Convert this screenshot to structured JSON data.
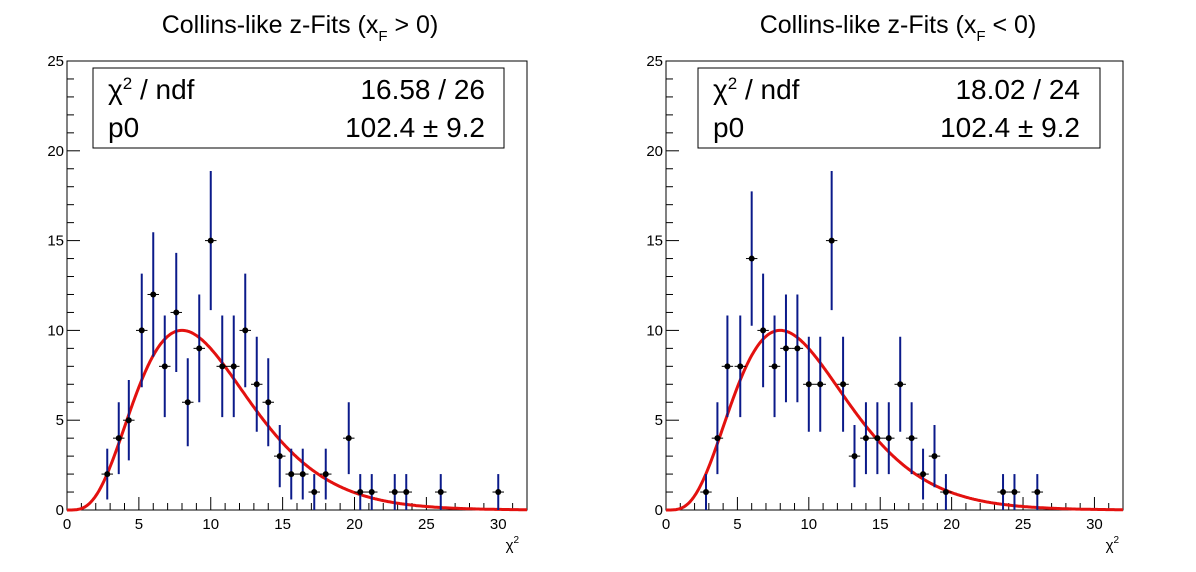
{
  "chart_data": [
    {
      "type": "scatter",
      "title_main": "Collins-like z-Fits (x",
      "title_sub": "F",
      "title_end": " > 0)",
      "xlabel_symbol": "χ",
      "xlabel_exp": "2",
      "xlim": [
        0,
        32
      ],
      "ylim": [
        0,
        25
      ],
      "x_ticks": [
        "0",
        "5",
        "10",
        "15",
        "20",
        "25",
        "30"
      ],
      "y_ticks": [
        "0",
        "5",
        "10",
        "15",
        "20",
        "25"
      ],
      "stats": {
        "row1_label_symbol": "χ",
        "row1_label_exp": "2",
        "row1_label_rest": " / ndf",
        "row1_value": "16.58 / 26",
        "row2_label": "p0",
        "row2_value": "102.4 ± 9.2"
      },
      "series": [
        {
          "x": [
            2.8,
            3.6,
            4.3,
            5.2,
            6.0,
            6.8,
            7.6,
            8.4,
            9.2,
            10.0,
            10.8,
            11.6,
            12.4,
            13.2,
            14.0,
            14.8,
            15.6,
            16.4,
            17.2,
            18.0,
            19.6,
            20.4,
            21.2,
            22.8,
            23.6,
            26.0,
            30.0
          ],
          "y": [
            2,
            4,
            5,
            10,
            12,
            8,
            11,
            6,
            9,
            15,
            8,
            8,
            10,
            7,
            6,
            3,
            2,
            2,
            1,
            2,
            4,
            1,
            1,
            1,
            1,
            1,
            1
          ],
          "error_color": "#0b1a8a",
          "marker_color": "#000000"
        }
      ],
      "fit": {
        "function": "chi2-pdf",
        "norm": 102.4,
        "ndf": 10,
        "color": "#e3110f"
      }
    },
    {
      "type": "scatter",
      "title_main": "Collins-like z-Fits (x",
      "title_sub": "F",
      "title_end": " < 0)",
      "xlabel_symbol": "χ",
      "xlabel_exp": "2",
      "xlim": [
        0,
        32
      ],
      "ylim": [
        0,
        25
      ],
      "x_ticks": [
        "0",
        "5",
        "10",
        "15",
        "20",
        "25",
        "30"
      ],
      "y_ticks": [
        "0",
        "5",
        "10",
        "15",
        "20",
        "25"
      ],
      "stats": {
        "row1_label_symbol": "χ",
        "row1_label_exp": "2",
        "row1_label_rest": " / ndf",
        "row1_value": "18.02 / 24",
        "row2_label": "p0",
        "row2_value": "102.4 ± 9.2"
      },
      "series": [
        {
          "x": [
            2.8,
            3.6,
            4.3,
            5.2,
            6.0,
            6.8,
            7.6,
            8.4,
            9.2,
            10.0,
            10.8,
            11.6,
            12.4,
            13.2,
            14.0,
            14.8,
            15.6,
            16.4,
            17.2,
            18.0,
            18.8,
            19.6,
            23.6,
            24.4,
            26.0
          ],
          "y": [
            1,
            4,
            8,
            8,
            14,
            10,
            8,
            9,
            9,
            7,
            7,
            15,
            7,
            3,
            4,
            4,
            4,
            7,
            4,
            2,
            3,
            1,
            1,
            1,
            1
          ],
          "error_color": "#0b1a8a",
          "marker_color": "#000000"
        }
      ],
      "fit": {
        "function": "chi2-pdf",
        "norm": 102.4,
        "ndf": 10,
        "color": "#e3110f"
      }
    }
  ]
}
